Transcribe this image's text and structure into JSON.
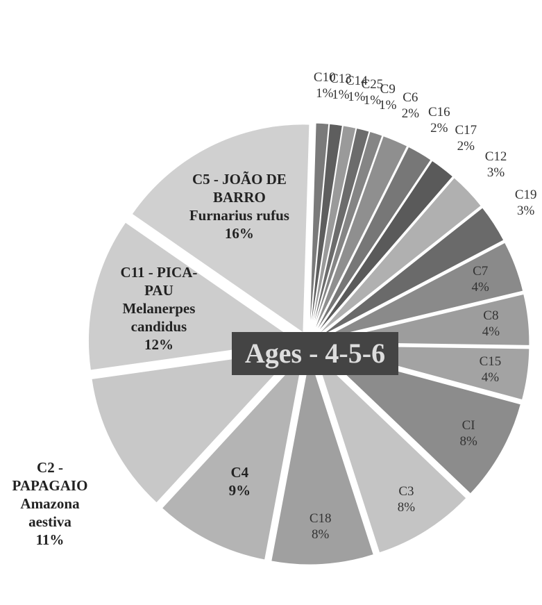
{
  "chart_data": {
    "type": "pie",
    "title": "Ages - 4-5-6",
    "categories": [
      "C10",
      "C13",
      "C14",
      "C25",
      "C9",
      "C6",
      "C16",
      "C17",
      "C12",
      "C19",
      "C7",
      "C8",
      "C15",
      "CI",
      "C3",
      "C18",
      "C4",
      "C2 - PAPAGAIO Amazona aestiva",
      "C11 - PICA-PAU Melanerpes candidus",
      "C5 - JOÃO DE BARRO Furnarius rufus"
    ],
    "values": [
      1,
      1,
      1,
      1,
      1,
      2,
      2,
      2,
      3,
      3,
      4,
      4,
      4,
      8,
      8,
      8,
      9,
      11,
      12,
      16
    ],
    "value_labels": [
      "1%",
      "1%",
      "1%",
      "1%",
      "1%",
      "2%",
      "2%",
      "2%",
      "3%",
      "3%",
      "4%",
      "4%",
      "4%",
      "8%",
      "8%",
      "8%",
      "9%",
      "11%",
      "12%",
      "16%"
    ],
    "colors": [
      "#7a7a7a",
      "#5e5e5e",
      "#9a9a9a",
      "#6c6c6c",
      "#858585",
      "#8f8f8f",
      "#777777",
      "#5a5a5a",
      "#b0b0b0",
      "#6a6a6a",
      "#8a8a8a",
      "#9d9d9d",
      "#a3a3a3",
      "#8c8c8c",
      "#c4c4c4",
      "#a0a0a0",
      "#b4b4b4",
      "#c8c8c8",
      "#cdcdcd",
      "#d0d0d0"
    ]
  }
}
